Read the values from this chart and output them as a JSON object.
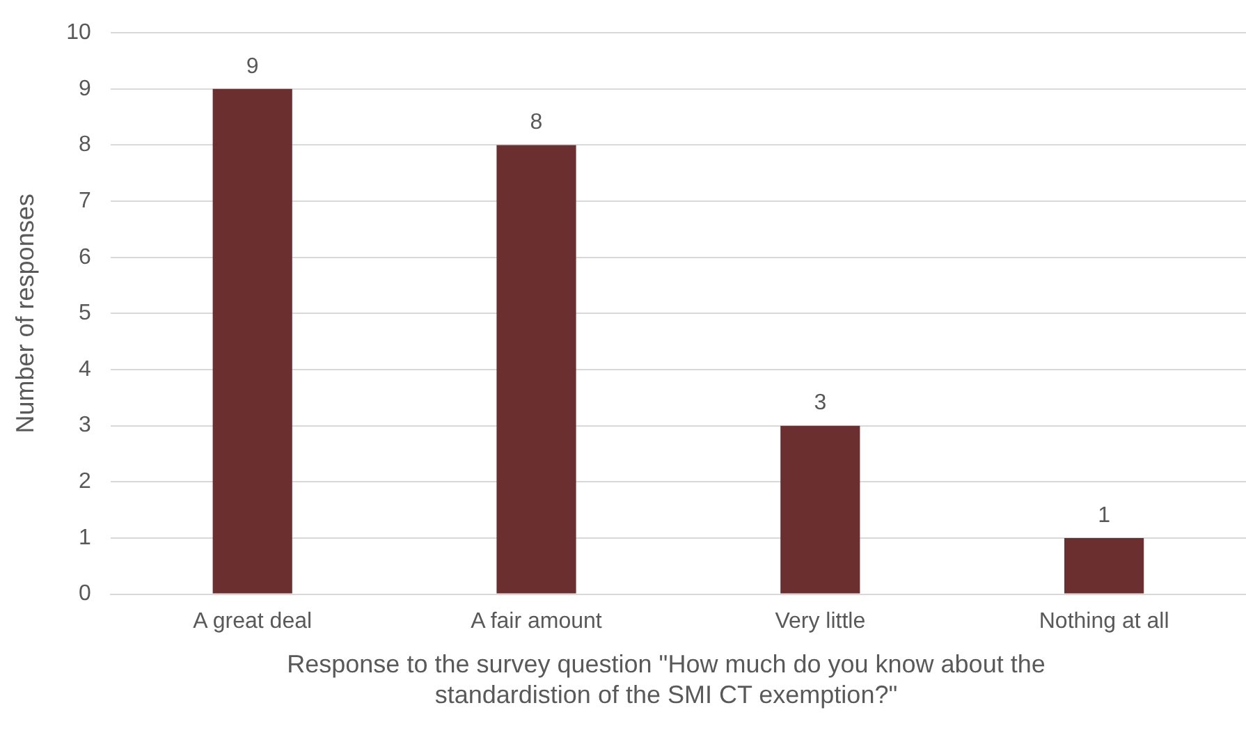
{
  "chart_data": {
    "type": "bar",
    "xlabel": "Response to the survey question \"How much do you know about the standardistion of the SMI CT exemption?\"",
    "ylabel": "Number of responses",
    "categories": [
      "A great deal",
      "A fair amount",
      "Very little",
      "Nothing at all"
    ],
    "values": [
      9,
      8,
      3,
      1
    ],
    "color": "#6b2f2f",
    "ylim": [
      0,
      10
    ],
    "yticks": [
      0,
      1,
      2,
      3,
      4,
      5,
      6,
      7,
      8,
      9,
      10
    ],
    "grid": "y",
    "data_labels": true,
    "legend": false
  }
}
